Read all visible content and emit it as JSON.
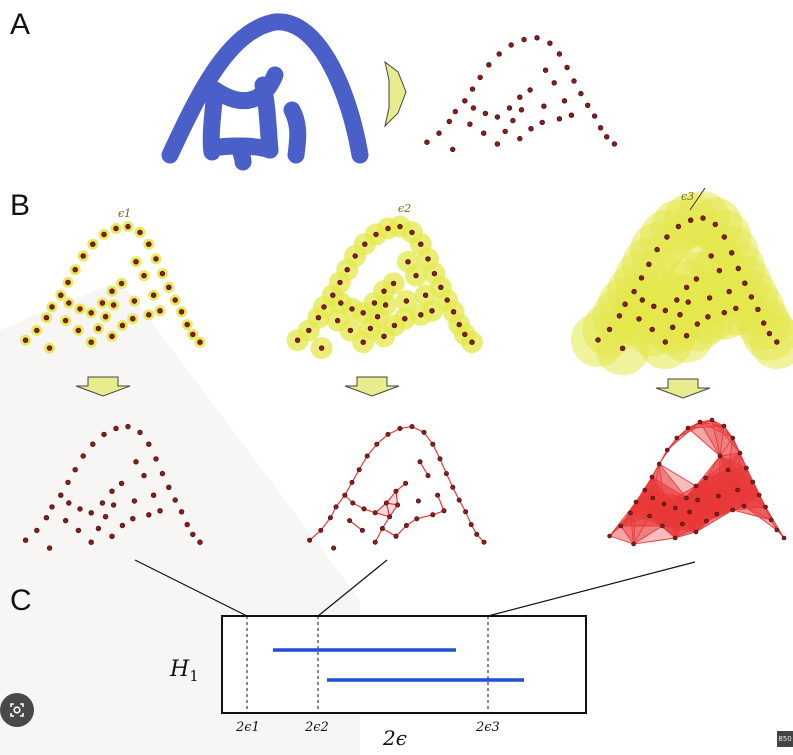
{
  "panels": {
    "a": "A",
    "b": "B",
    "c": "C"
  },
  "epsilon_labels": [
    "ϵ1",
    "ϵ2",
    "ϵ3"
  ],
  "barcode": {
    "homology_label": "H1",
    "x_axis_label": "2ϵ",
    "ticks": [
      "2ϵ1",
      "2ϵ2",
      "2ϵ3"
    ],
    "bars": [
      {
        "birth_tick": "2ϵ1",
        "death_fraction": 0.61
      },
      {
        "birth_tick": "2ϵ2",
        "death_fraction": 0.81
      }
    ]
  },
  "colors": {
    "shape_blue": "#4a5fc8",
    "point": "#8b1c1c",
    "ball_yellow": "#e3e84a",
    "complex_red": "#e83a3a",
    "arrow_fill": "#e9ec8c",
    "bar_blue": "#1f4fd6"
  },
  "icons": {
    "lens": "lens-icon",
    "arrow": "arrow-icon"
  },
  "badge_text": "850"
}
